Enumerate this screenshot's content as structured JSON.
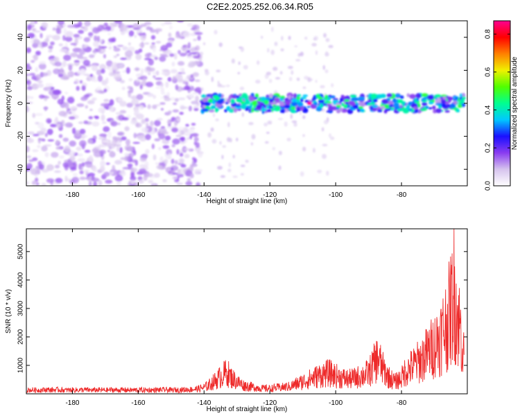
{
  "title": "C2E2.2025.252.06.34.R05",
  "chart_data": [
    {
      "type": "heatmap",
      "panel": "top",
      "xlabel": "Height of straight line (km)",
      "ylabel": "Frequency (Hz)",
      "xlim": [
        -194,
        -60
      ],
      "ylim": [
        -50,
        50
      ],
      "xticks": [
        -180,
        -160,
        -140,
        -120,
        -100,
        -80
      ],
      "yticks": [
        -40,
        -20,
        0,
        20,
        40
      ],
      "colorbar": {
        "label": "Normalized spectral amplitude",
        "range": [
          0.0,
          0.87
        ],
        "ticks": [
          0.0,
          0.2,
          0.4,
          0.6,
          0.8
        ],
        "colormap": [
          "#ffffff",
          "#d6c3ee",
          "#8a3cf0",
          "#1a10ff",
          "#00c8ff",
          "#00ff90",
          "#50ff00",
          "#f0f000",
          "#ff8000",
          "#ff0000",
          "#ff0090"
        ]
      },
      "features": [
        {
          "name": "broadband noise",
          "x_range": [
            -194,
            -141
          ],
          "y_range": [
            -50,
            50
          ],
          "typical_amplitude": 0.12
        },
        {
          "name": "signal band",
          "x_range": [
            -141,
            -61
          ],
          "center_frequency": 0,
          "half_width": 5,
          "typical_amplitude": 0.35,
          "peak_amplitude": 0.87,
          "peak_height": -108
        }
      ]
    },
    {
      "type": "line",
      "panel": "bottom",
      "xlabel": "Height of straight line (km)",
      "ylabel": "SNR (10 * v/v)",
      "xlim": [
        -194,
        -60
      ],
      "ylim": [
        0,
        5800
      ],
      "xticks": [
        -180,
        -160,
        -140,
        -120,
        -100,
        -80
      ],
      "yticks": [
        1000,
        2000,
        3000,
        4000,
        5000
      ],
      "series": [
        {
          "name": "SNR",
          "color": "#ee2a2a",
          "x": [
            -194,
            -192,
            -190,
            -188,
            -186,
            -184,
            -182,
            -180,
            -178,
            -176,
            -174,
            -172,
            -170,
            -168,
            -166,
            -164,
            -162,
            -160,
            -158,
            -156,
            -154,
            -152,
            -150,
            -148,
            -146,
            -144,
            -142,
            -140,
            -138,
            -136,
            -134,
            -133,
            -132,
            -130,
            -128,
            -126,
            -124,
            -122,
            -120,
            -118,
            -116,
            -114,
            -112,
            -110,
            -108,
            -106,
            -104,
            -102,
            -100,
            -98,
            -96,
            -94,
            -92,
            -90,
            -88,
            -87,
            -86,
            -84,
            -82,
            -80,
            -79,
            -78,
            -76,
            -74,
            -72,
            -70,
            -68,
            -66,
            -65,
            -64,
            -63,
            -62,
            -61
          ],
          "values": [
            150,
            160,
            150,
            170,
            160,
            165,
            150,
            160,
            155,
            165,
            150,
            160,
            150,
            165,
            155,
            160,
            150,
            160,
            155,
            150,
            160,
            165,
            155,
            160,
            170,
            180,
            200,
            260,
            400,
            600,
            800,
            900,
            700,
            500,
            350,
            300,
            250,
            220,
            220,
            250,
            270,
            300,
            400,
            500,
            600,
            700,
            800,
            850,
            750,
            650,
            600,
            650,
            750,
            850,
            1300,
            1500,
            1100,
            700,
            500,
            650,
            900,
            1000,
            1200,
            1400,
            1700,
            2000,
            2400,
            3000,
            3500,
            4200,
            3200,
            2600,
            1500
          ]
        }
      ]
    }
  ]
}
